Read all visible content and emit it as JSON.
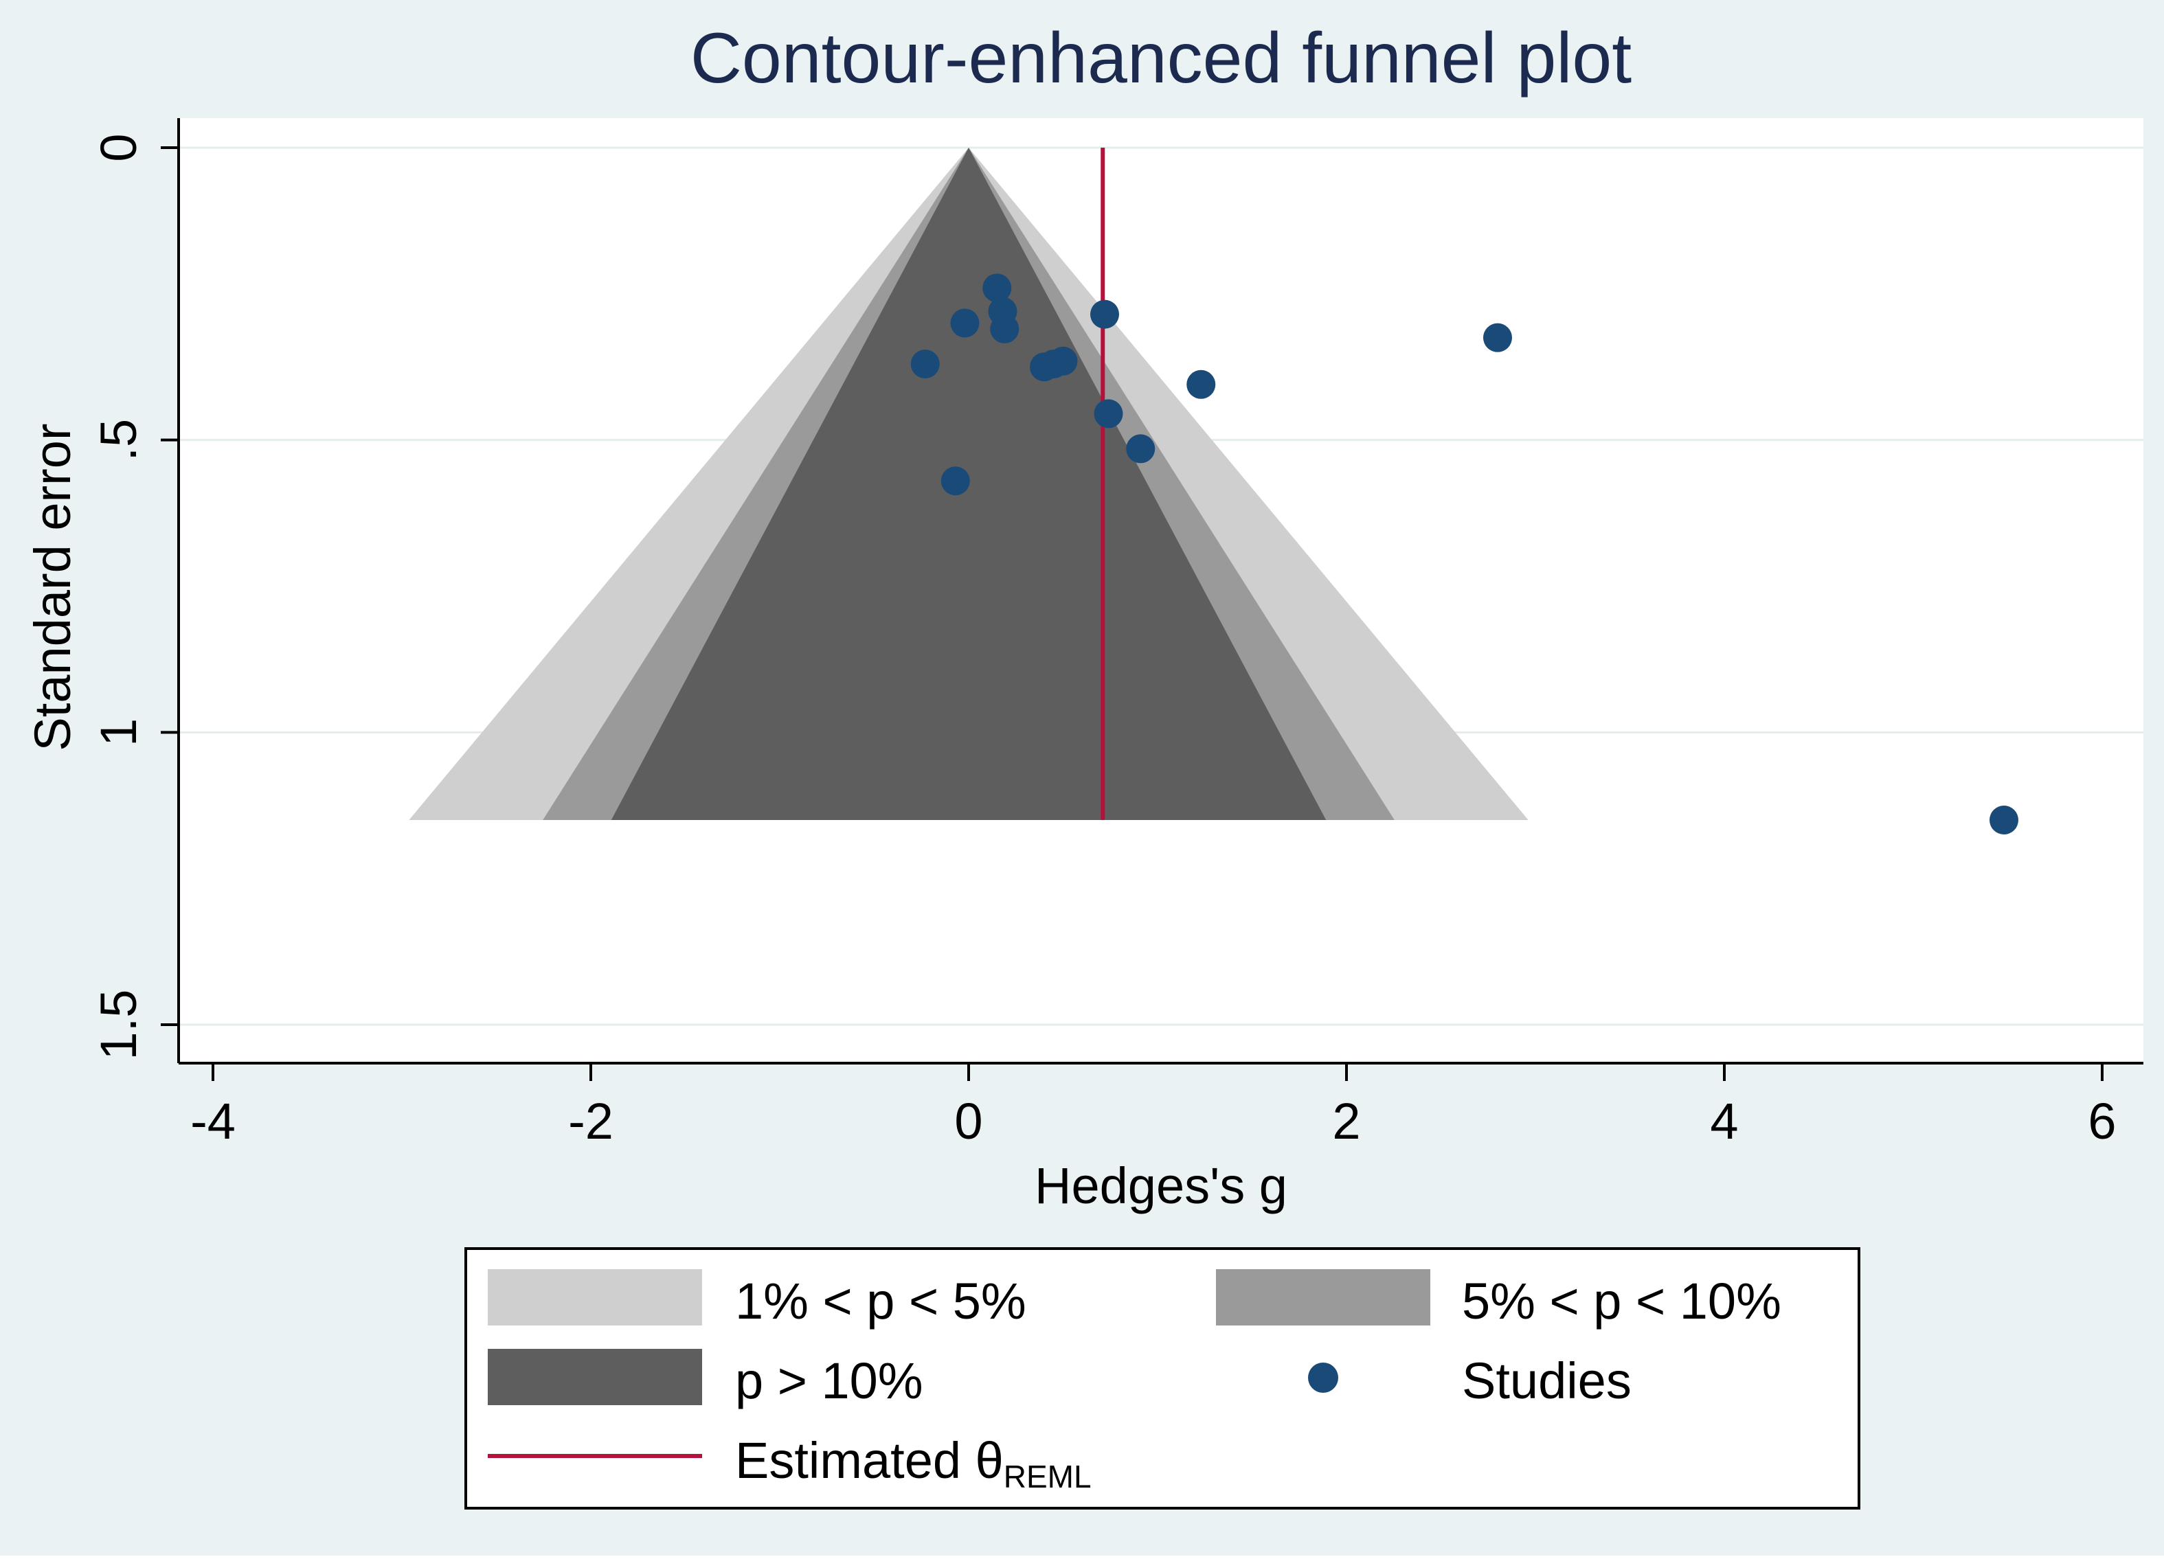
{
  "chart_data": {
    "type": "scatter",
    "title": "Contour-enhanced funnel plot",
    "xlabel": "Hedges's g",
    "ylabel": "Standard error",
    "xlim": [
      -4.2,
      6.2
    ],
    "ylim": [
      0,
      1.57
    ],
    "y_reversed": true,
    "x_ticks": [
      -4,
      -2,
      0,
      2,
      4,
      6
    ],
    "x_tick_labels": [
      "-4",
      "-2",
      "0",
      "2",
      "4",
      "6"
    ],
    "y_ticks": [
      0,
      0.5,
      1,
      1.5
    ],
    "y_tick_labels": [
      "0",
      ".5",
      "1",
      "1.5"
    ],
    "grid": "horizontal",
    "legend_position": "bottom",
    "estimate_line": {
      "name": "Estimated θ",
      "subscript": "REML",
      "x": 0.71,
      "color": "#b5113d"
    },
    "contours": {
      "center": 0,
      "se_max": 1.15,
      "regions": [
        {
          "name": "1% < p < 5%",
          "z": 2.576,
          "color": "#cfcfcf"
        },
        {
          "name": "5% < p < 10%",
          "z": 1.96,
          "color": "#9a9a9a"
        },
        {
          "name": "p > 10%",
          "z": 1.645,
          "color": "#5e5e5e"
        }
      ]
    },
    "studies": {
      "name": "Studies",
      "color": "#1a4a78",
      "points": [
        {
          "x": 0.15,
          "y": 0.24
        },
        {
          "x": 0.18,
          "y": 0.28
        },
        {
          "x": 0.19,
          "y": 0.31
        },
        {
          "x": -0.02,
          "y": 0.3
        },
        {
          "x": 0.72,
          "y": 0.285
        },
        {
          "x": 2.8,
          "y": 0.325
        },
        {
          "x": -0.23,
          "y": 0.37
        },
        {
          "x": 0.4,
          "y": 0.375
        },
        {
          "x": 0.45,
          "y": 0.37
        },
        {
          "x": 0.5,
          "y": 0.365
        },
        {
          "x": 1.23,
          "y": 0.405
        },
        {
          "x": 0.74,
          "y": 0.455
        },
        {
          "x": 0.91,
          "y": 0.515
        },
        {
          "x": -0.07,
          "y": 0.57
        },
        {
          "x": 5.48,
          "y": 1.15
        }
      ]
    }
  }
}
